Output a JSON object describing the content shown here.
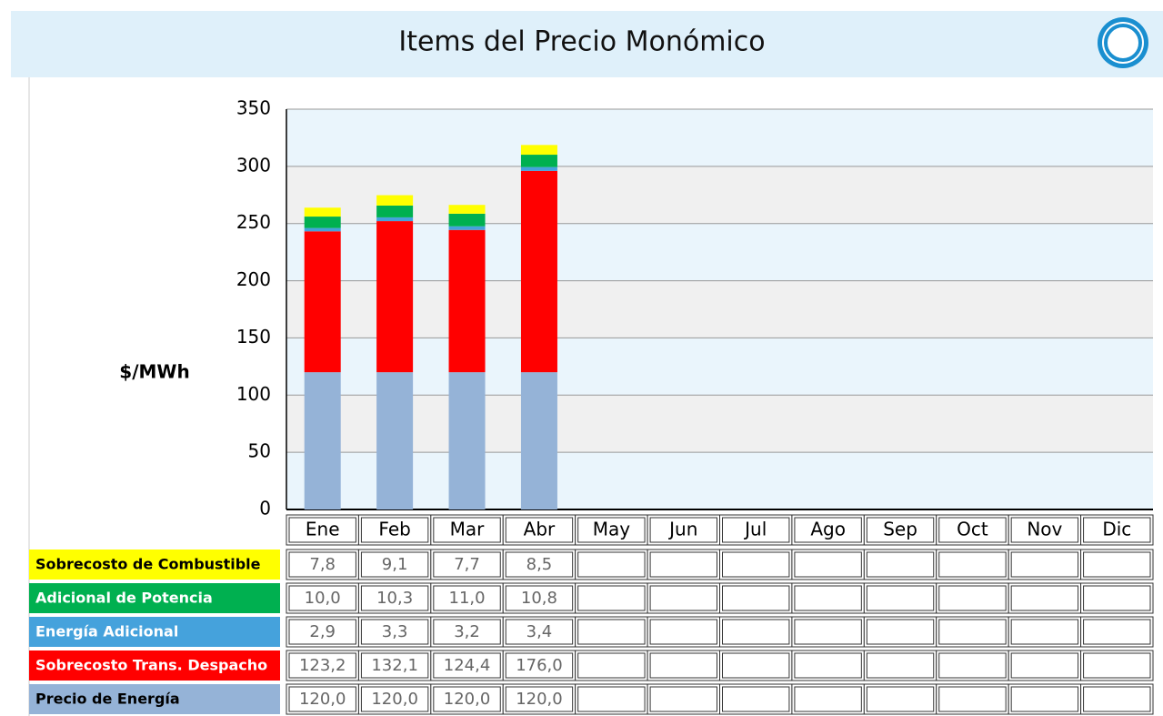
{
  "chart_data": {
    "type": "stacked_bar",
    "title": "Items del Precio Monómico",
    "y_label": "$/MWh",
    "categories": [
      "Ene",
      "Feb",
      "Mar",
      "Abr",
      "May",
      "Jun",
      "Jul",
      "Ago",
      "Sep",
      "Oct",
      "Nov",
      "Dic"
    ],
    "ylim": [
      0,
      350
    ],
    "yticks": [
      0,
      50,
      100,
      150,
      200,
      250,
      300,
      350
    ],
    "grid": true,
    "series": [
      {
        "name": "Precio de Energía",
        "color": "#95b3d7",
        "text_color": "#000000",
        "values": [
          120.0,
          120.0,
          120.0,
          120.0,
          null,
          null,
          null,
          null,
          null,
          null,
          null,
          null
        ],
        "value_labels": [
          "120,0",
          "120,0",
          "120,0",
          "120,0",
          null,
          null,
          null,
          null,
          null,
          null,
          null,
          null
        ]
      },
      {
        "name": "Sobrecosto Trans. Despacho",
        "color": "#ff0000",
        "text_color": "#ffffff",
        "values": [
          123.2,
          132.1,
          124.4,
          176.0,
          null,
          null,
          null,
          null,
          null,
          null,
          null,
          null
        ],
        "value_labels": [
          "123,2",
          "132,1",
          "124,4",
          "176,0",
          null,
          null,
          null,
          null,
          null,
          null,
          null,
          null
        ]
      },
      {
        "name": "Energía Adicional",
        "color": "#45a2dc",
        "text_color": "#ffffff",
        "values": [
          2.9,
          3.3,
          3.2,
          3.4,
          null,
          null,
          null,
          null,
          null,
          null,
          null,
          null
        ],
        "value_labels": [
          "2,9",
          "3,3",
          "3,2",
          "3,4",
          null,
          null,
          null,
          null,
          null,
          null,
          null,
          null
        ]
      },
      {
        "name": "Adicional de Potencia",
        "color": "#00b050",
        "text_color": "#ffffff",
        "values": [
          10.0,
          10.3,
          11.0,
          10.8,
          null,
          null,
          null,
          null,
          null,
          null,
          null,
          null
        ],
        "value_labels": [
          "10,0",
          "10,3",
          "11,0",
          "10,8",
          null,
          null,
          null,
          null,
          null,
          null,
          null,
          null
        ]
      },
      {
        "name": "Sobrecosto de Combustible",
        "color": "#ffff00",
        "text_color": "#000000",
        "values": [
          7.8,
          9.1,
          7.7,
          8.5,
          null,
          null,
          null,
          null,
          null,
          null,
          null,
          null
        ],
        "value_labels": [
          "7,8",
          "9,1",
          "7,7",
          "8,5",
          null,
          null,
          null,
          null,
          null,
          null,
          null,
          null
        ]
      }
    ]
  }
}
